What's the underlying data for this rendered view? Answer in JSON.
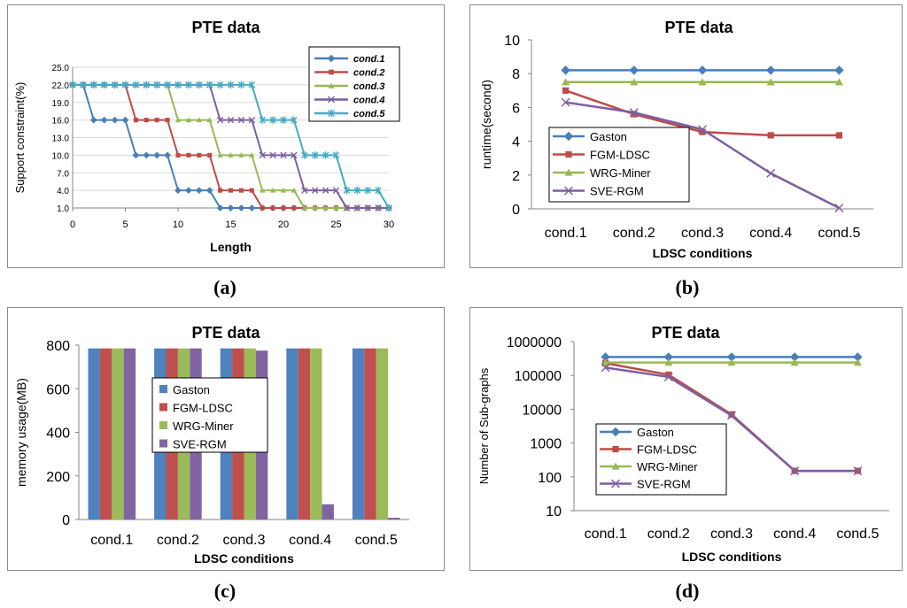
{
  "figure": {
    "captions": [
      "(a)",
      "(b)",
      "(c)",
      "(d)"
    ]
  },
  "chart_data": [
    {
      "id": "a",
      "type": "line",
      "title": "PTE data",
      "xlabel": "Length",
      "ylabel": "Support constraint(%)",
      "xlim": [
        0,
        30
      ],
      "ylim": [
        1,
        25
      ],
      "xticks": [
        0,
        5,
        10,
        15,
        20,
        25,
        30
      ],
      "yticks": [
        1,
        4,
        7,
        10,
        13,
        16,
        19,
        22,
        25
      ],
      "ytick_labels": [
        "1.0",
        "4.0",
        "7.0",
        "10.0",
        "13.0",
        "16.0",
        "19.0",
        "22.0",
        "25.0"
      ],
      "legend_position": "top-right",
      "x": [
        0,
        1,
        2,
        3,
        4,
        5,
        6,
        7,
        8,
        9,
        10,
        11,
        12,
        13,
        14,
        15,
        16,
        17,
        18,
        19,
        20,
        21,
        22,
        23,
        24,
        25,
        26,
        27,
        28,
        29,
        30
      ],
      "series": [
        {
          "name": "cond.1",
          "color": "#4a7ebb",
          "marker": "diamond",
          "values": [
            22,
            22,
            16,
            16,
            16,
            16,
            10,
            10,
            10,
            10,
            4,
            4,
            4,
            4,
            1,
            1,
            1,
            1,
            1,
            1,
            1,
            1,
            1,
            1,
            1,
            1,
            1,
            1,
            1,
            1,
            1
          ]
        },
        {
          "name": "cond.2",
          "color": "#be4b48",
          "marker": "square",
          "values": [
            22,
            22,
            22,
            22,
            22,
            22,
            16,
            16,
            16,
            16,
            10,
            10,
            10,
            10,
            4,
            4,
            4,
            4,
            1,
            1,
            1,
            1,
            1,
            1,
            1,
            1,
            1,
            1,
            1,
            1,
            1
          ]
        },
        {
          "name": "cond.3",
          "color": "#98b954",
          "marker": "triangle",
          "values": [
            22,
            22,
            22,
            22,
            22,
            22,
            22,
            22,
            22,
            22,
            16,
            16,
            16,
            16,
            10,
            10,
            10,
            10,
            4,
            4,
            4,
            4,
            1,
            1,
            1,
            1,
            1,
            1,
            1,
            1,
            1
          ]
        },
        {
          "name": "cond.4",
          "color": "#7d5fa0",
          "marker": "x",
          "values": [
            22,
            22,
            22,
            22,
            22,
            22,
            22,
            22,
            22,
            22,
            22,
            22,
            22,
            22,
            16,
            16,
            16,
            16,
            10,
            10,
            10,
            10,
            4,
            4,
            4,
            4,
            1,
            1,
            1,
            1,
            1
          ]
        },
        {
          "name": "cond.5",
          "color": "#46aac5",
          "marker": "star",
          "values": [
            22,
            22,
            22,
            22,
            22,
            22,
            22,
            22,
            22,
            22,
            22,
            22,
            22,
            22,
            22,
            22,
            22,
            22,
            16,
            16,
            16,
            16,
            10,
            10,
            10,
            10,
            4,
            4,
            4,
            4,
            1
          ]
        }
      ]
    },
    {
      "id": "b",
      "type": "line",
      "title": "PTE data",
      "xlabel": "LDSC conditions",
      "ylabel": "runtime(second)",
      "ylim": [
        0,
        10
      ],
      "yticks": [
        0,
        2,
        4,
        6,
        8,
        10
      ],
      "categories": [
        "cond.1",
        "cond.2",
        "cond.3",
        "cond.4",
        "cond.5"
      ],
      "legend_position": "center-left",
      "series": [
        {
          "name": "Gaston",
          "color": "#4a7ebb",
          "marker": "diamond",
          "values": [
            8.2,
            8.2,
            8.2,
            8.2,
            8.2
          ]
        },
        {
          "name": "FGM-LDSC",
          "color": "#be4b48",
          "marker": "square",
          "values": [
            7.0,
            5.6,
            4.55,
            4.35,
            4.35
          ]
        },
        {
          "name": "WRG-Miner",
          "color": "#98b954",
          "marker": "triangle",
          "values": [
            7.5,
            7.5,
            7.5,
            7.5,
            7.5
          ]
        },
        {
          "name": "SVE-RGM",
          "color": "#7d5fa0",
          "marker": "x",
          "values": [
            6.3,
            5.7,
            4.7,
            2.1,
            0.05
          ]
        }
      ]
    },
    {
      "id": "c",
      "type": "bar",
      "title": "PTE data",
      "xlabel": "LDSC conditions",
      "ylabel": "memory usage(MB)",
      "ylim": [
        0,
        800
      ],
      "yticks": [
        0,
        200,
        400,
        600,
        800
      ],
      "categories": [
        "cond.1",
        "cond.2",
        "cond.3",
        "cond.4",
        "cond.5"
      ],
      "legend_position": "center",
      "series": [
        {
          "name": "Gaston",
          "color": "#4f81bd",
          "values": [
            785,
            785,
            785,
            785,
            785
          ]
        },
        {
          "name": "FGM-LDSC",
          "color": "#c0504d",
          "values": [
            785,
            785,
            785,
            785,
            785
          ]
        },
        {
          "name": "WRG-Miner",
          "color": "#9bbb59",
          "values": [
            785,
            785,
            785,
            785,
            785
          ]
        },
        {
          "name": "SVE-RGM",
          "color": "#8064a2",
          "values": [
            785,
            785,
            775,
            70,
            8
          ]
        }
      ]
    },
    {
      "id": "d",
      "type": "line",
      "title": "PTE data",
      "xlabel": "LDSC conditions",
      "ylabel": "Number of Sub-graphs",
      "yscale": "log",
      "ylim": [
        10,
        1000000
      ],
      "yticks": [
        10,
        100,
        1000,
        10000,
        100000,
        1000000
      ],
      "ytick_labels": [
        "10",
        "100",
        "1000",
        "10000",
        "100000",
        "1000000"
      ],
      "categories": [
        "cond.1",
        "cond.2",
        "cond.3",
        "cond.4",
        "cond.5"
      ],
      "legend_position": "bottom-left",
      "series": [
        {
          "name": "Gaston",
          "color": "#4a7ebb",
          "marker": "diamond",
          "values": [
            350000,
            350000,
            350000,
            350000,
            350000
          ]
        },
        {
          "name": "FGM-LDSC",
          "color": "#be4b48",
          "marker": "square",
          "values": [
            230000,
            105000,
            7000,
            150,
            150
          ]
        },
        {
          "name": "WRG-Miner",
          "color": "#98b954",
          "marker": "triangle",
          "values": [
            240000,
            240000,
            240000,
            240000,
            240000
          ]
        },
        {
          "name": "SVE-RGM",
          "color": "#7d5fa0",
          "marker": "x",
          "values": [
            170000,
            90000,
            6500,
            150,
            150
          ]
        }
      ]
    }
  ]
}
